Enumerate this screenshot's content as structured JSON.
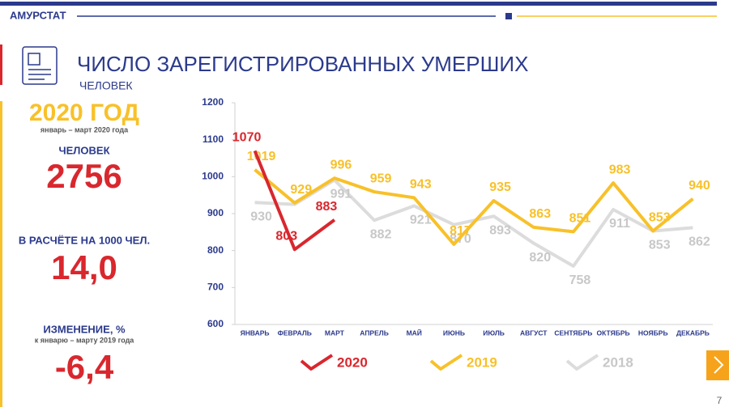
{
  "header": {
    "brand": "АМУРСТАТ",
    "page": "7"
  },
  "summary": {
    "year": "2020 ГОД",
    "period": "январь – март 2020 года",
    "count_label": "ЧЕЛОВЕК",
    "count": "2756",
    "rate_label": "В РАСЧЁТЕ НА 1000 ЧЕЛ.",
    "rate": "14,0",
    "change_label": "ИЗМЕНЕНИЕ, %",
    "change_period": "к январю – марту 2019 года",
    "change": "-6,4"
  },
  "chart_data": {
    "type": "line",
    "title": "ЧИСЛО ЗАРЕГИСТРИРОВАННЫХ УМЕРШИХ",
    "subtitle": "ЧЕЛОВЕК",
    "categories": [
      "ЯНВАРЬ",
      "ФЕВРАЛЬ",
      "МАРТ",
      "АПРЕЛЬ",
      "МАЙ",
      "ИЮНЬ",
      "ИЮЛЬ",
      "АВГУСТ",
      "СЕНТЯБРЬ",
      "ОКТЯБРЬ",
      "НОЯБРЬ",
      "ДЕКАБРЬ"
    ],
    "series": [
      {
        "name": "2020",
        "color": "#d9272e",
        "values": [
          1070,
          803,
          883,
          null,
          null,
          null,
          null,
          null,
          null,
          null,
          null,
          null
        ]
      },
      {
        "name": "2019",
        "color": "#f8c12a",
        "values": [
          1019,
          929,
          996,
          959,
          943,
          817,
          935,
          863,
          851,
          983,
          853,
          940
        ]
      },
      {
        "name": "2018",
        "color": "#dcdcdc",
        "values": [
          930,
          925,
          991,
          882,
          921,
          870,
          893,
          820,
          758,
          911,
          853,
          862
        ],
        "value_labels": [
          "930",
          null,
          "991",
          "882",
          "921",
          "870",
          "893",
          "820",
          "758",
          "911",
          "853",
          "862"
        ]
      }
    ],
    "ylim": [
      600,
      1200
    ],
    "yticks": [
      600,
      700,
      800,
      900,
      1000,
      1100,
      1200
    ],
    "grid": false
  }
}
